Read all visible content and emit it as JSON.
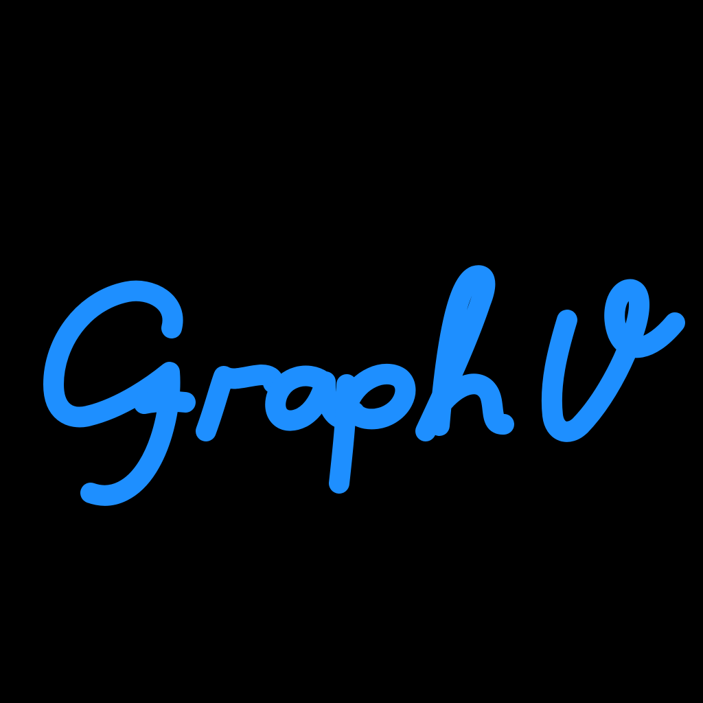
{
  "logo": {
    "text": "GraphV",
    "color": "#1E8FFF",
    "background": "#000000"
  }
}
